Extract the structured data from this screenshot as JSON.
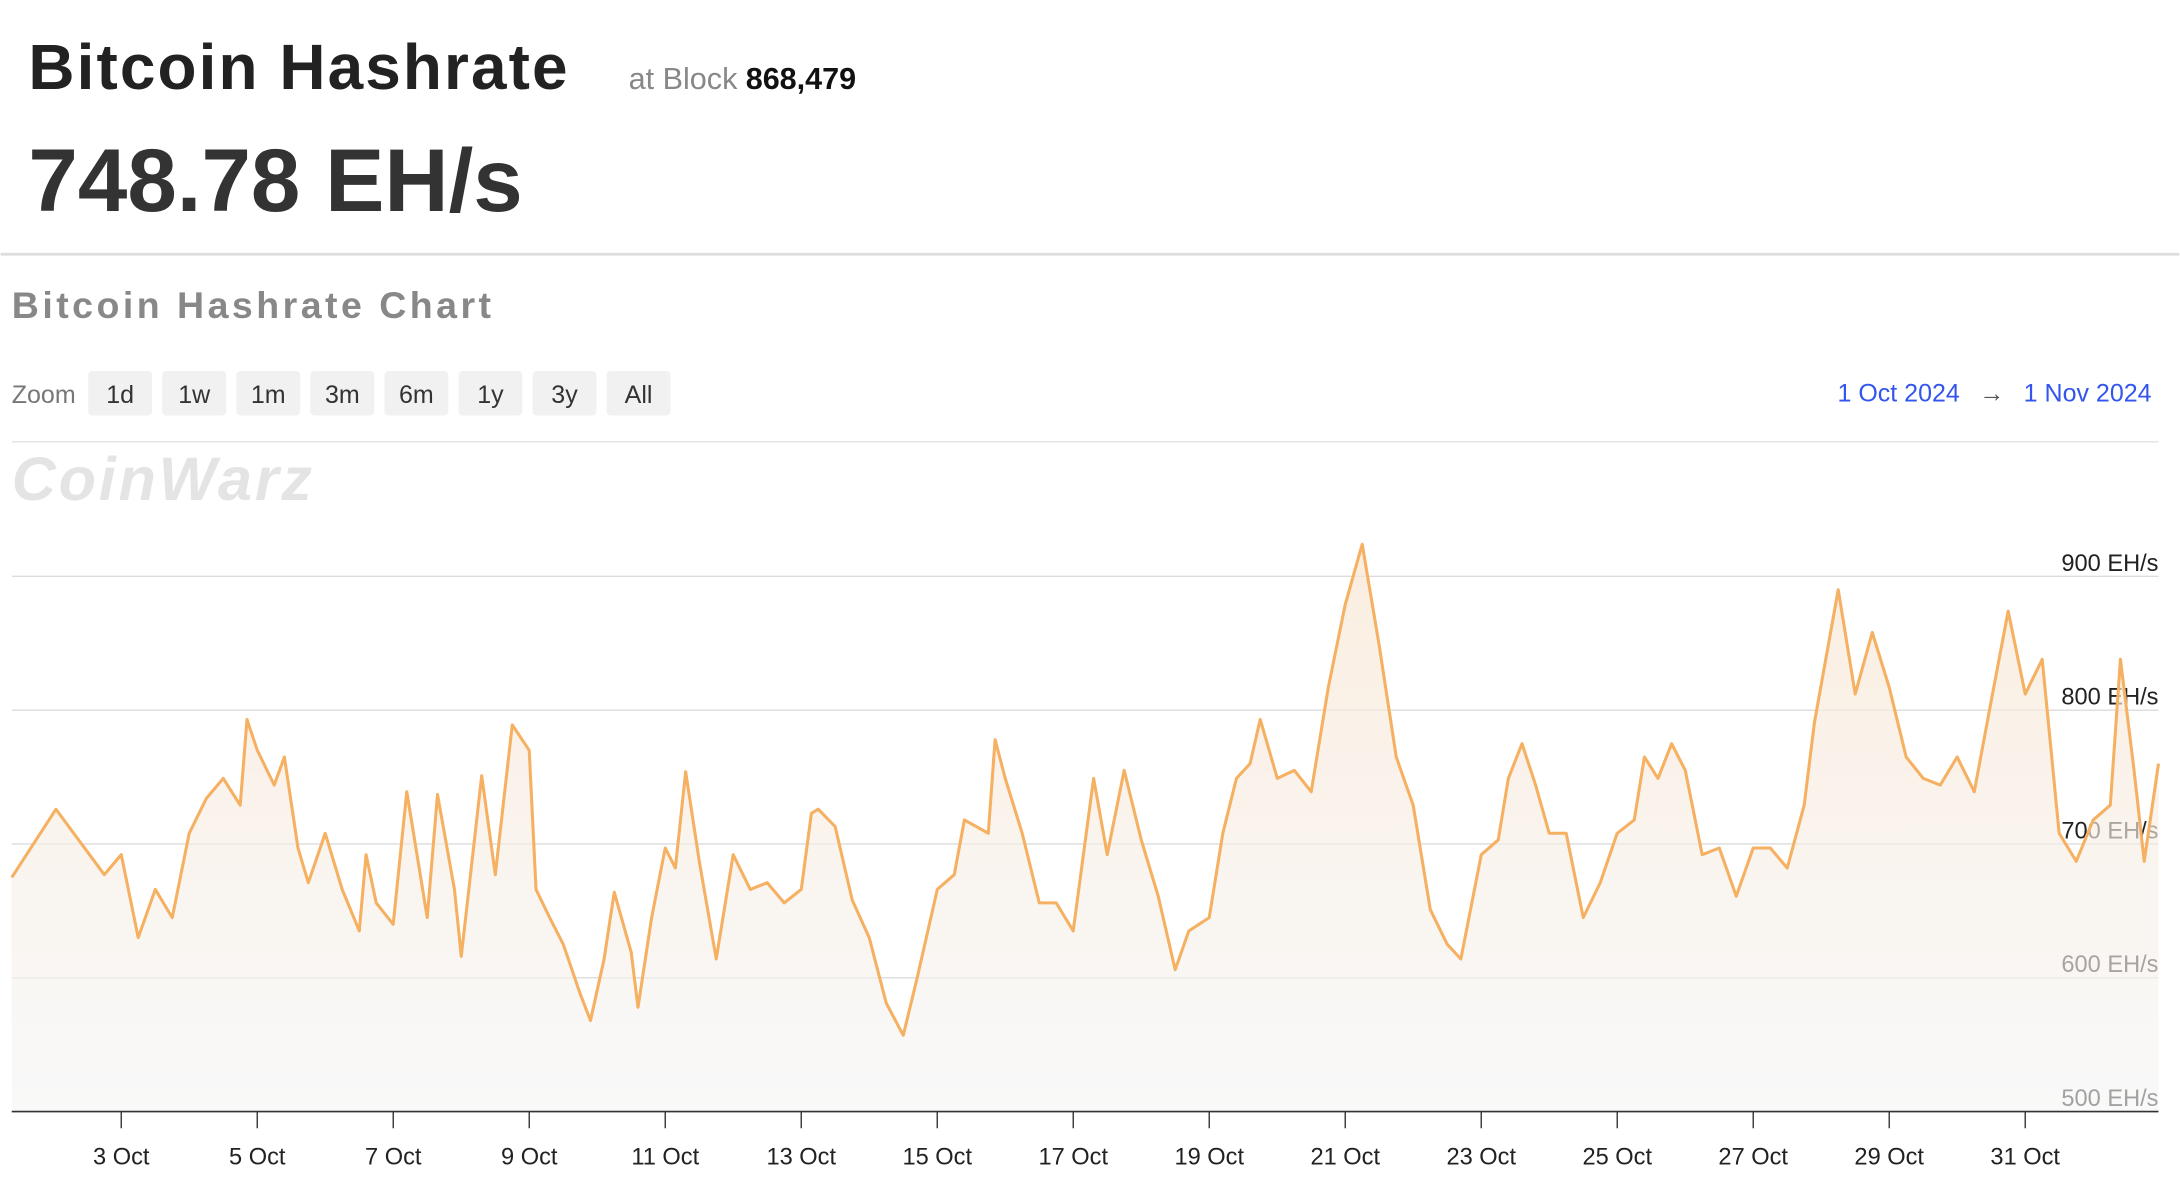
{
  "header": {
    "title": "Bitcoin Hashrate",
    "block_label": "at Block",
    "block_number": "868,479",
    "hashrate": "748.78 EH/s"
  },
  "controls": {
    "zoom_label": "Zoom",
    "zoom_options": [
      "1d",
      "1w",
      "1m",
      "3m",
      "6m",
      "1y",
      "3y",
      "All"
    ],
    "range_start": "1 Oct 2024",
    "range_arrow": "→",
    "range_end": "1 Nov 2024"
  },
  "chart_data": {
    "type": "line",
    "title": "Bitcoin Hashrate Chart",
    "watermark": "CoinWarz",
    "color": "#f5b062",
    "grid": true,
    "x": [
      1.39,
      2.04,
      2.75,
      3.0,
      3.25,
      3.5,
      3.75,
      4.0,
      4.25,
      4.5,
      4.75,
      4.85,
      5.0,
      5.25,
      5.4,
      5.6,
      5.75,
      6.0,
      6.25,
      6.5,
      6.6,
      6.75,
      7.0,
      7.2,
      7.5,
      7.65,
      7.9,
      8.0,
      8.3,
      8.5,
      8.75,
      9.0,
      9.1,
      9.3,
      9.5,
      9.75,
      9.9,
      10.1,
      10.25,
      10.5,
      10.6,
      10.8,
      11.0,
      11.15,
      11.3,
      11.5,
      11.75,
      12.0,
      12.25,
      12.5,
      12.75,
      13.0,
      13.15,
      13.25,
      13.5,
      13.75,
      14.0,
      14.25,
      14.5,
      14.7,
      15.0,
      15.25,
      15.4,
      15.75,
      15.85,
      16.0,
      16.25,
      16.5,
      16.75,
      17.0,
      17.3,
      17.5,
      17.75,
      18.0,
      18.25,
      18.5,
      18.7,
      19.0,
      19.2,
      19.4,
      19.6,
      19.75,
      20.0,
      20.25,
      20.5,
      20.75,
      21.0,
      21.25,
      21.5,
      21.75,
      22.0,
      22.25,
      22.5,
      22.7,
      23.0,
      23.25,
      23.4,
      23.6,
      23.8,
      24.0,
      24.25,
      24.5,
      24.75,
      25.0,
      25.25,
      25.4,
      25.6,
      25.8,
      26.0,
      26.25,
      26.5,
      26.75,
      27.0,
      27.25,
      27.5,
      27.75,
      27.9,
      28.25,
      28.5,
      28.75,
      29.0,
      29.25,
      29.5,
      29.75,
      30.0,
      30.25,
      30.5,
      30.75,
      31.0,
      31.25,
      31.5,
      31.75,
      32.0,
      32.25,
      32.4,
      32.6,
      32.75,
      32.96
    ],
    "values": [
      675,
      726,
      677,
      692,
      630,
      666,
      645,
      708,
      734,
      749,
      729,
      793,
      770,
      744,
      765,
      697,
      671,
      708,
      666,
      635,
      692,
      656,
      640,
      739,
      645,
      737,
      666,
      616,
      751,
      677,
      789,
      770,
      666,
      645,
      625,
      588,
      568,
      614,
      664,
      619,
      578,
      645,
      697,
      682,
      754,
      687,
      614,
      692,
      666,
      671,
      656,
      666,
      723,
      726,
      713,
      658,
      630,
      581,
      557,
      599,
      666,
      677,
      718,
      708,
      778,
      749,
      708,
      656,
      656,
      635,
      749,
      692,
      755,
      703,
      661,
      606,
      635,
      645,
      708,
      749,
      760,
      793,
      749,
      755,
      739,
      817,
      879,
      924,
      848,
      765,
      729,
      651,
      625,
      614,
      692,
      703,
      749,
      775,
      744,
      708,
      708,
      645,
      671,
      708,
      718,
      765,
      749,
      775,
      755,
      692,
      697,
      661,
      697,
      697,
      682,
      729,
      791,
      890,
      812,
      858,
      817,
      765,
      749,
      744,
      765,
      739,
      807,
      874,
      812,
      838,
      708,
      687,
      718,
      729,
      838,
      755,
      687,
      760
    ],
    "xlim": [
      1.39,
      32.96
    ],
    "xticks": [
      {
        "value": 3,
        "label": "3 Oct"
      },
      {
        "value": 5,
        "label": "5 Oct"
      },
      {
        "value": 7,
        "label": "7 Oct"
      },
      {
        "value": 9,
        "label": "9 Oct"
      },
      {
        "value": 11,
        "label": "11 Oct"
      },
      {
        "value": 13,
        "label": "13 Oct"
      },
      {
        "value": 15,
        "label": "15 Oct"
      },
      {
        "value": 17,
        "label": "17 Oct"
      },
      {
        "value": 19,
        "label": "19 Oct"
      },
      {
        "value": 21,
        "label": "21 Oct"
      },
      {
        "value": 23,
        "label": "23 Oct"
      },
      {
        "value": 25,
        "label": "25 Oct"
      },
      {
        "value": 27,
        "label": "27 Oct"
      },
      {
        "value": 29,
        "label": "29 Oct"
      },
      {
        "value": 31,
        "label": "31 Oct"
      }
    ],
    "ylim": [
      500,
      1000
    ],
    "yticks": [
      {
        "value": 500,
        "label": "500 EH/s"
      },
      {
        "value": 600,
        "label": "600 EH/s"
      },
      {
        "value": 700,
        "label": "700 EH/s"
      },
      {
        "value": 800,
        "label": "800 EH/s"
      },
      {
        "value": 900,
        "label": "900 EH/s"
      }
    ]
  }
}
